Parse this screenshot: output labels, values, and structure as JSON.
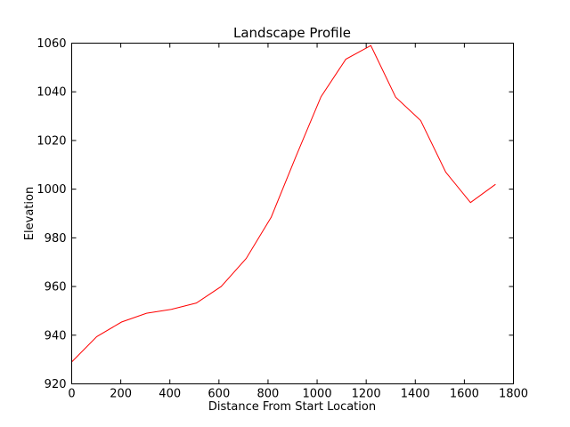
{
  "chart_data": {
    "type": "line",
    "title": "Landscape Profile",
    "xlabel": "Distance From Start Location",
    "ylabel": "Elevation",
    "xlim": [
      0,
      1800
    ],
    "ylim": [
      920,
      1060
    ],
    "xticks": [
      0,
      200,
      400,
      600,
      800,
      1000,
      1200,
      1400,
      1600,
      1800
    ],
    "yticks": [
      920,
      940,
      960,
      980,
      1000,
      1020,
      1040,
      1060
    ],
    "grid": false,
    "series": [
      {
        "color": "#ff0000",
        "x": [
          0,
          102,
          203,
          305,
          406,
          508,
          609,
          711,
          813,
          914,
          1016,
          1117,
          1219,
          1320,
          1422,
          1524,
          1625,
          1727
        ],
        "y": [
          929,
          939.4,
          945.4,
          949.0,
          950.6,
          953.2,
          960.0,
          971.5,
          988.5,
          1013.5,
          1038.0,
          1053.4,
          1059.0,
          1037.8,
          1028.2,
          1007.0,
          994.5,
          1002.0
        ]
      }
    ]
  }
}
